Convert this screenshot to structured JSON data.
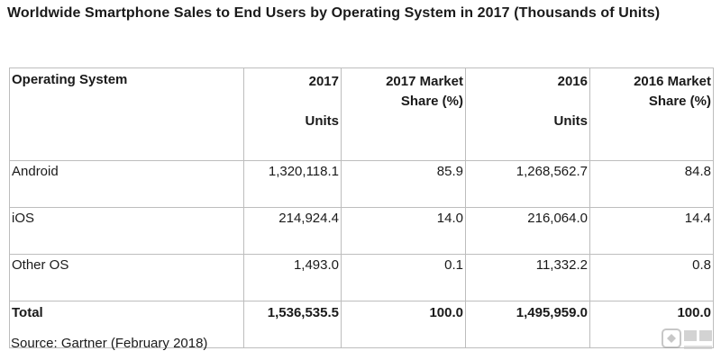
{
  "title": "Worldwide Smartphone Sales to End Users by Operating System in 2017 (Thousands of Units)",
  "table": {
    "headers": {
      "os": "Operating System",
      "y2017": "2017",
      "y2017_units": "Units",
      "share2017_line1": "2017 Market",
      "share2017_line2": "Share (%)",
      "y2016": "2016",
      "y2016_units": "Units",
      "share2016_line1": "2016 Market",
      "share2016_line2": "Share (%)"
    },
    "rows": [
      {
        "os": "Android",
        "units2017": "1,320,118.1",
        "share2017": "85.9",
        "units2016": "1,268,562.7",
        "share2016": "84.8"
      },
      {
        "os": "iOS",
        "units2017": "214,924.4",
        "share2017": "14.0",
        "units2016": "216,064.0",
        "share2016": "14.4"
      },
      {
        "os": "Other OS",
        "units2017": "1,493.0",
        "share2017": "0.1",
        "units2016": "11,332.2",
        "share2016": "0.8"
      }
    ],
    "total": {
      "label": "Total",
      "units2017": "1,536,535.5",
      "share2017": "100.0",
      "units2016": "1,495,959.0",
      "share2016": "100.0"
    }
  },
  "source": "Source: Gartner (February 2018)",
  "watermark_icon": "watermark-logo-icon",
  "colors": {
    "border": "#bdbdbd",
    "text": "#1a1a1a",
    "background": "#ffffff"
  }
}
